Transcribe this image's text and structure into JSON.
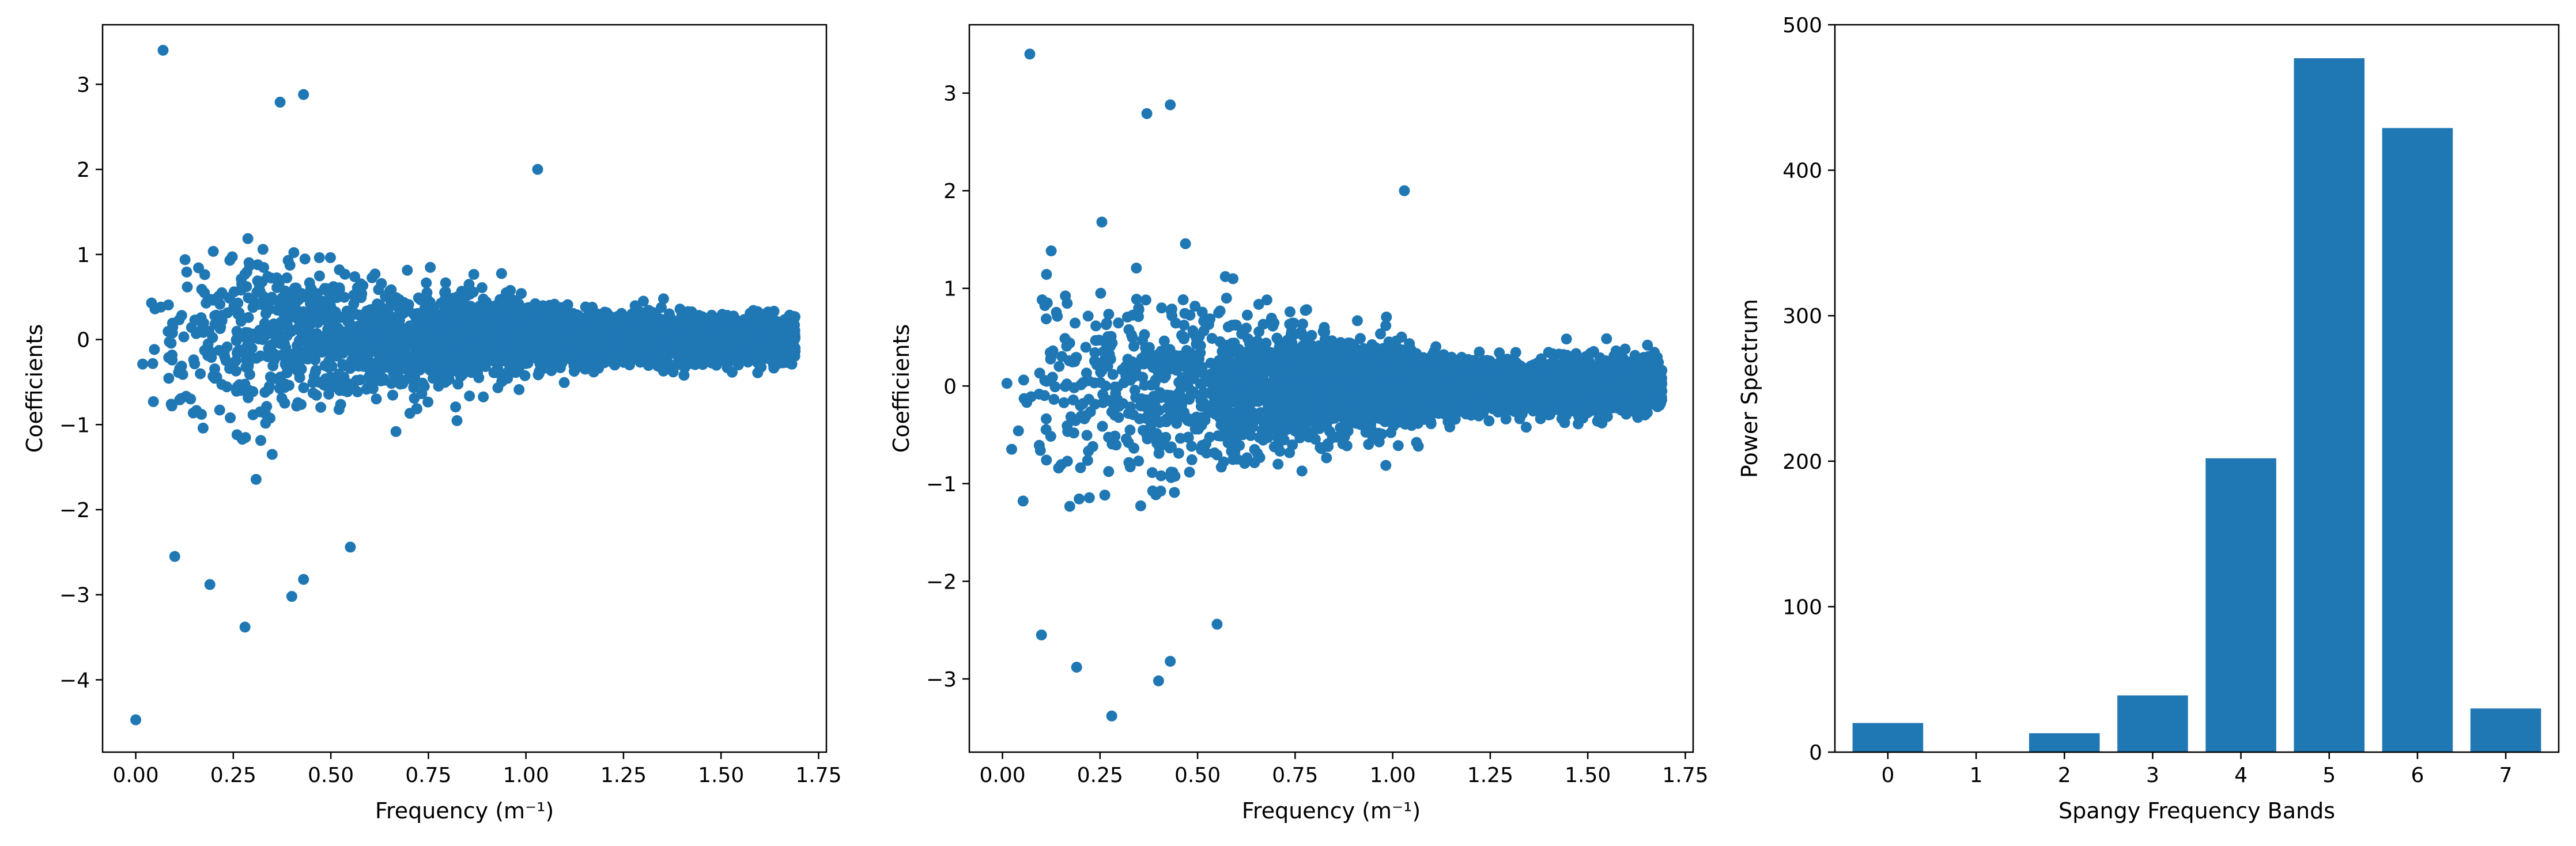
{
  "colors": {
    "marker": "#1f77b4",
    "axis": "#000000",
    "background": "#ffffff"
  },
  "chart_data": [
    {
      "type": "scatter",
      "title": "",
      "xlabel": "Frequency (m⁻¹)",
      "ylabel": "Coefficients",
      "xlim": [
        -0.085,
        1.77
      ],
      "ylim": [
        -4.85,
        3.7
      ],
      "xticks": [
        0.0,
        0.25,
        0.5,
        0.75,
        1.0,
        1.25,
        1.5,
        1.75
      ],
      "xtick_labels": [
        "0.00",
        "0.25",
        "0.50",
        "0.75",
        "1.00",
        "1.25",
        "1.50",
        "1.75"
      ],
      "yticks": [
        -4,
        -3,
        -2,
        -1,
        0,
        1,
        2,
        3
      ],
      "ytick_labels": [
        "−4",
        "−3",
        "−2",
        "−1",
        "0",
        "1",
        "2",
        "3"
      ],
      "grid": false,
      "approx_point_count": 4000,
      "x_range": [
        0.0,
        1.69
      ],
      "notable_points": [
        {
          "x": 0.0,
          "y": -4.47
        },
        {
          "x": 0.07,
          "y": 3.4
        },
        {
          "x": 0.43,
          "y": 2.88
        },
        {
          "x": 0.37,
          "y": 2.79
        },
        {
          "x": 1.03,
          "y": 2.0
        },
        {
          "x": 0.28,
          "y": -3.38
        },
        {
          "x": 0.4,
          "y": -3.02
        },
        {
          "x": 0.1,
          "y": -2.55
        },
        {
          "x": 0.19,
          "y": -2.88
        },
        {
          "x": 0.43,
          "y": -2.82
        },
        {
          "x": 0.55,
          "y": -2.44
        }
      ]
    },
    {
      "type": "scatter",
      "title": "",
      "xlabel": "Frequency (m⁻¹)",
      "ylabel": "Coefficients",
      "xlim": [
        -0.085,
        1.77
      ],
      "ylim": [
        -3.75,
        3.7
      ],
      "xticks": [
        0.0,
        0.25,
        0.5,
        0.75,
        1.0,
        1.25,
        1.5,
        1.75
      ],
      "xtick_labels": [
        "0.00",
        "0.25",
        "0.50",
        "0.75",
        "1.00",
        "1.25",
        "1.50",
        "1.75"
      ],
      "yticks": [
        -3,
        -2,
        -1,
        0,
        1,
        2,
        3
      ],
      "ytick_labels": [
        "−3",
        "−2",
        "−1",
        "0",
        "1",
        "2",
        "3"
      ],
      "grid": false,
      "approx_point_count": 4000,
      "x_range": [
        0.0,
        1.69
      ],
      "notable_points": [
        {
          "x": 0.07,
          "y": 3.4
        },
        {
          "x": 0.43,
          "y": 2.88
        },
        {
          "x": 0.37,
          "y": 2.79
        },
        {
          "x": 1.03,
          "y": 2.0
        },
        {
          "x": 0.28,
          "y": -3.38
        },
        {
          "x": 0.4,
          "y": -3.02
        },
        {
          "x": 0.1,
          "y": -2.55
        },
        {
          "x": 0.19,
          "y": -2.88
        },
        {
          "x": 0.43,
          "y": -2.82
        },
        {
          "x": 0.55,
          "y": -2.44
        }
      ]
    },
    {
      "type": "bar",
      "title": "",
      "xlabel": "Spangy Frequency Bands",
      "ylabel": "Power Spectrum",
      "categories": [
        "0",
        "1",
        "2",
        "3",
        "4",
        "5",
        "6",
        "7"
      ],
      "values": [
        20,
        0,
        13,
        39,
        202,
        477,
        429,
        30
      ],
      "xlim": [
        -0.6,
        7.6
      ],
      "ylim": [
        0,
        500
      ],
      "yticks": [
        0,
        100,
        200,
        300,
        400,
        500
      ],
      "ytick_labels": [
        "0",
        "100",
        "200",
        "300",
        "400",
        "500"
      ],
      "grid": false
    }
  ]
}
